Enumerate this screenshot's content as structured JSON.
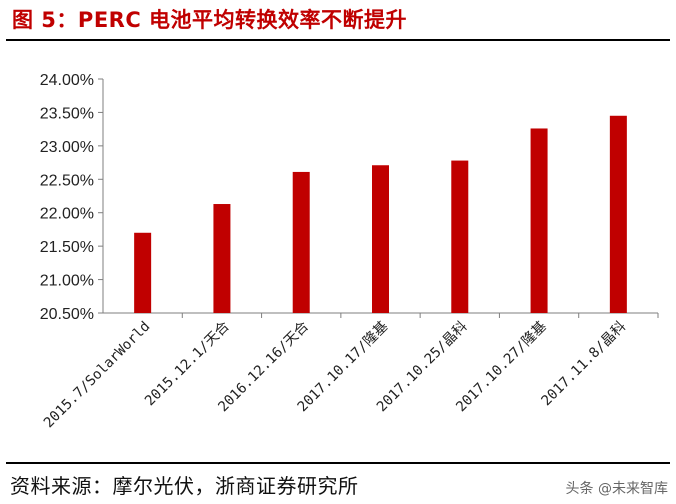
{
  "title": "图 5：PERC 电池平均转换效率不断提升",
  "source": "资料来源：摩尔光伏，浙商证券研究所",
  "watermark": "头条 @未来智库",
  "colors": {
    "bar": "#c00000",
    "title": "#c00000",
    "axis": "#7f7f7f"
  },
  "chart_data": {
    "type": "bar",
    "categories": [
      "2015.7/SolarWorld",
      "2015.12.1/天合",
      "2016.12.16/天合",
      "2017.10.17/隆基",
      "2017.10.25/晶科",
      "2017.10.27/隆基",
      "2017.11.8/晶科"
    ],
    "values": [
      21.7,
      22.13,
      22.61,
      22.71,
      22.78,
      23.26,
      23.45
    ],
    "ylim": [
      20.5,
      24.0
    ],
    "yticks": [
      "20.50%",
      "21.00%",
      "21.50%",
      "22.00%",
      "22.50%",
      "23.00%",
      "23.50%",
      "24.00%"
    ],
    "ytick_values": [
      20.5,
      21.0,
      21.5,
      22.0,
      22.5,
      23.0,
      23.5,
      24.0
    ],
    "grid": false,
    "legend": false
  }
}
